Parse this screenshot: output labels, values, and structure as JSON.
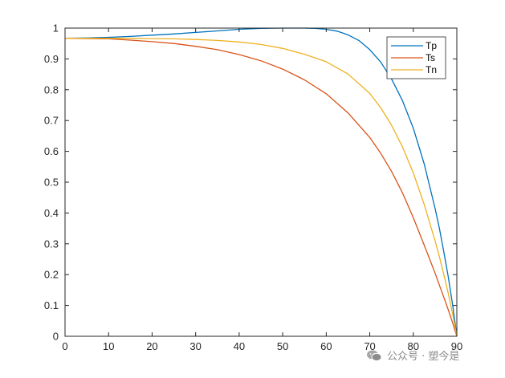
{
  "chart_data": {
    "type": "line",
    "xlim": [
      0,
      90
    ],
    "ylim": [
      0,
      1
    ],
    "x_ticks": [
      "0",
      "10",
      "20",
      "30",
      "40",
      "50",
      "60",
      "70",
      "80",
      "90"
    ],
    "y_ticks": [
      "0",
      "0.1",
      "0.2",
      "0.3",
      "0.4",
      "0.5",
      "0.6",
      "0.7",
      "0.8",
      "0.9",
      "1"
    ],
    "grid": false,
    "legend_position": "top-right",
    "series": [
      {
        "name": "Tp",
        "color": "#0072BD",
        "x": [
          0,
          5,
          10,
          15,
          20,
          25,
          30,
          35,
          40,
          45,
          50,
          52.5,
          55,
          57.5,
          60,
          62.5,
          65,
          67.5,
          70,
          72.5,
          75,
          77.5,
          80,
          82.5,
          85,
          86,
          87,
          88,
          89,
          90
        ],
        "y": [
          0.967,
          0.968,
          0.97,
          0.973,
          0.977,
          0.981,
          0.986,
          0.991,
          0.996,
          0.999,
          1.0,
          1.0,
          1.0,
          0.999,
          0.996,
          0.99,
          0.978,
          0.96,
          0.93,
          0.89,
          0.835,
          0.765,
          0.675,
          0.56,
          0.415,
          0.35,
          0.275,
          0.195,
          0.105,
          0.0
        ]
      },
      {
        "name": "Ts",
        "color": "#D95319",
        "x": [
          0,
          5,
          10,
          15,
          20,
          25,
          30,
          35,
          40,
          45,
          50,
          55,
          60,
          65,
          70,
          72.5,
          75,
          77.5,
          80,
          82.5,
          85,
          86,
          87,
          88,
          89,
          90
        ],
        "y": [
          0.967,
          0.966,
          0.965,
          0.961,
          0.956,
          0.95,
          0.941,
          0.93,
          0.914,
          0.894,
          0.867,
          0.832,
          0.787,
          0.725,
          0.645,
          0.594,
          0.535,
          0.466,
          0.385,
          0.296,
          0.205,
          0.166,
          0.127,
          0.087,
          0.045,
          0.0
        ]
      },
      {
        "name": "Tn",
        "color": "#EDB120",
        "x": [
          0,
          5,
          10,
          15,
          20,
          25,
          30,
          35,
          40,
          45,
          50,
          55,
          60,
          65,
          70,
          72.5,
          75,
          77.5,
          80,
          82.5,
          85,
          86,
          87,
          88,
          89,
          90
        ],
        "y": [
          0.967,
          0.967,
          0.967,
          0.967,
          0.966,
          0.965,
          0.963,
          0.96,
          0.955,
          0.947,
          0.934,
          0.915,
          0.891,
          0.851,
          0.788,
          0.742,
          0.685,
          0.615,
          0.53,
          0.428,
          0.31,
          0.258,
          0.201,
          0.141,
          0.075,
          0.0
        ]
      }
    ]
  },
  "watermark": {
    "icon": "wechat-icon",
    "text": "公众号 · 塑今是"
  }
}
